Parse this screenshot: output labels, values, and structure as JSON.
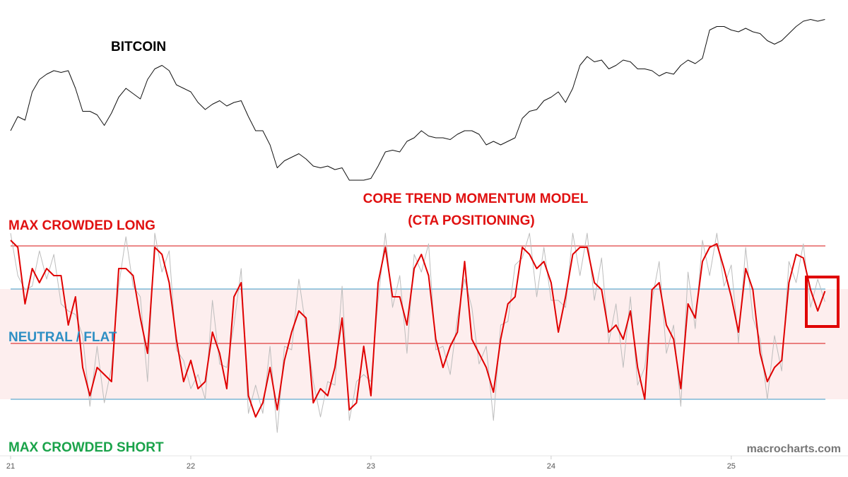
{
  "chart_data": {
    "type": "line",
    "title": "CORE TREND MOMENTUM MODEL",
    "subtitle": "(CTA POSITIONING)",
    "source": "macrocharts.com",
    "xlim": [
      21,
      25.64
    ],
    "xticks": [
      21,
      22,
      23,
      24,
      25
    ],
    "ylim": [
      -126,
      156
    ],
    "y2lim": [
      0,
      100
    ],
    "band": {
      "range": [
        -79,
        77
      ],
      "color": "#fdeeee"
    },
    "reference_lines": [
      {
        "value": 138,
        "color": "#d81010",
        "label": "MAX CROWDED LONG",
        "label_color": "#e01010"
      },
      {
        "value": 77,
        "color": "#3a97c4"
      },
      {
        "value": 0,
        "color": "#d81010",
        "label": "NEUTRAL / FLAT",
        "label_color": "#2e8fc4"
      },
      {
        "value": -79,
        "color": "#3a97c4",
        "label": "MAX CROWDED SHORT",
        "label_color": "#1aa34a"
      }
    ],
    "x": [
      21,
      21.04,
      21.08,
      21.12,
      21.16,
      21.2,
      21.24,
      21.28,
      21.32,
      21.36,
      21.4,
      21.44,
      21.48,
      21.52,
      21.56,
      21.6,
      21.64,
      21.68,
      21.72,
      21.76,
      21.8,
      21.84,
      21.88,
      21.92,
      21.96,
      22,
      22.04,
      22.08,
      22.12,
      22.16,
      22.2,
      22.24,
      22.28,
      22.32,
      22.36,
      22.4,
      22.44,
      22.48,
      22.52,
      22.56,
      22.6,
      22.64,
      22.68,
      22.72,
      22.76,
      22.8,
      22.84,
      22.88,
      22.92,
      22.96,
      23,
      23.04,
      23.08,
      23.12,
      23.16,
      23.2,
      23.24,
      23.28,
      23.32,
      23.36,
      23.4,
      23.44,
      23.48,
      23.52,
      23.56,
      23.6,
      23.64,
      23.68,
      23.72,
      23.76,
      23.8,
      23.84,
      23.88,
      23.92,
      23.96,
      24,
      24.04,
      24.08,
      24.12,
      24.16,
      24.2,
      24.24,
      24.28,
      24.32,
      24.36,
      24.4,
      24.44,
      24.48,
      24.52,
      24.56,
      24.6,
      24.64,
      24.68,
      24.72,
      24.76,
      24.8,
      24.84,
      24.88,
      24.92,
      24.96,
      25,
      25.04,
      25.08,
      25.12,
      25.16,
      25.2,
      25.24,
      25.28,
      25.32,
      25.36,
      25.4,
      25.44,
      25.48,
      25.52
    ],
    "series": [
      {
        "name": "BITCOIN",
        "color": "#111111",
        "axis": "y2",
        "width": 1,
        "values": [
          34,
          42,
          40,
          56,
          63,
          66,
          68,
          67,
          68,
          58,
          45,
          45,
          43,
          37,
          44,
          53,
          58,
          55,
          52,
          63,
          69,
          71,
          68,
          60,
          58,
          56,
          50,
          46,
          49,
          51,
          48,
          50,
          51,
          42,
          34,
          34,
          26,
          13,
          17,
          19,
          21,
          18,
          14,
          13,
          14,
          12,
          13,
          6,
          6,
          6,
          7,
          14,
          22,
          23,
          22,
          28,
          30,
          34,
          31,
          30,
          30,
          29,
          32,
          34,
          34,
          32,
          26,
          28,
          26,
          28,
          30,
          41,
          45,
          46,
          51,
          53,
          56,
          50,
          58,
          71,
          76,
          73,
          74,
          69,
          71,
          74,
          73,
          69,
          69,
          68,
          65,
          67,
          66,
          71,
          74,
          72,
          75,
          91,
          93,
          93,
          91,
          90,
          92,
          90,
          89,
          85,
          83,
          85,
          89,
          93,
          96,
          97,
          96,
          97
        ]
      },
      {
        "color": "#bdbdbd",
        "width": 1,
        "values": [
          156,
          96,
          76,
          81,
          131,
          91,
          126,
          56,
          46,
          41,
          11,
          -89,
          -4,
          -84,
          -34,
          81,
          151,
          81,
          66,
          -54,
          156,
          101,
          131,
          -9,
          -24,
          -64,
          -44,
          -79,
          61,
          -29,
          -34,
          26,
          106,
          -99,
          -59,
          -99,
          -4,
          -126,
          -4,
          -9,
          91,
          21,
          -54,
          -104,
          -54,
          -59,
          81,
          -109,
          -54,
          -44,
          -54,
          61,
          156,
          51,
          96,
          -14,
          126,
          101,
          141,
          -9,
          -4,
          -44,
          36,
          91,
          51,
          -29,
          -4,
          -109,
          26,
          31,
          111,
          121,
          156,
          66,
          136,
          61,
          61,
          51,
          156,
          96,
          156,
          61,
          121,
          1,
          56,
          -34,
          66,
          -59,
          -34,
          61,
          116,
          -14,
          26,
          -89,
          101,
          21,
          146,
          96,
          156,
          81,
          111,
          1,
          136,
          36,
          6,
          -79,
          11,
          -39,
          116,
          86,
          141,
          51,
          91,
          59
        ]
      },
      {
        "color": "#e00000",
        "width": 2,
        "values": [
          146,
          136,
          56,
          106,
          86,
          106,
          96,
          96,
          26,
          66,
          -34,
          -74,
          -34,
          -44,
          -54,
          106,
          106,
          96,
          36,
          -14,
          136,
          126,
          86,
          6,
          -54,
          -24,
          -64,
          -54,
          16,
          -14,
          -64,
          66,
          86,
          -74,
          -104,
          -84,
          -34,
          -94,
          -24,
          16,
          46,
          36,
          -84,
          -64,
          -74,
          -34,
          36,
          -94,
          -84,
          -4,
          -74,
          86,
          136,
          66,
          66,
          26,
          106,
          126,
          96,
          6,
          -34,
          -4,
          16,
          116,
          6,
          -14,
          -34,
          -69,
          6,
          56,
          66,
          136,
          126,
          106,
          116,
          86,
          16,
          66,
          126,
          136,
          136,
          86,
          76,
          16,
          26,
          6,
          46,
          -34,
          -79,
          76,
          86,
          26,
          6,
          -64,
          56,
          36,
          116,
          136,
          141,
          106,
          66,
          16,
          106,
          76,
          -14,
          -54,
          -34,
          -24,
          86,
          126,
          121,
          76,
          46,
          74
        ]
      }
    ]
  }
}
